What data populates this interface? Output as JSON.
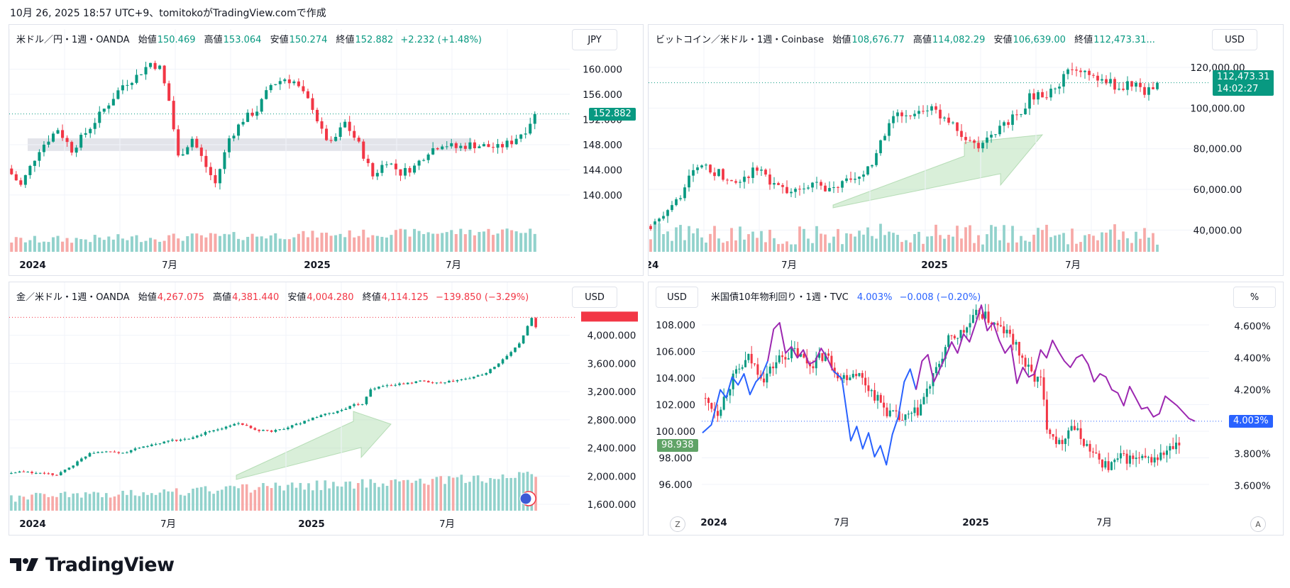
{
  "header": {
    "text": "10月 26, 2025 18:57 UTC+9、tomitokoがTradingView.comで作成"
  },
  "footer": {
    "brand": "TradingView"
  },
  "colors": {
    "up": "#089981",
    "down": "#f23645",
    "volUp": "#92d2cc",
    "volDown": "#f7a9a7",
    "blue": "#2962ff",
    "purple": "#9c27b0",
    "grid": "#f0f3fa"
  },
  "panels": {
    "p1": {
      "symbol": "米ドル／円・1週・OANDA",
      "open_label": "始値",
      "open": "150.469",
      "high_label": "高値",
      "high": "153.064",
      "low_label": "安値",
      "low": "150.274",
      "close_label": "終値",
      "close": "152.882",
      "change": "+2.232 (+1.48%)",
      "unit": "JPY",
      "price_tag": "152.882"
    },
    "p2": {
      "symbol": "ビットコイン／米ドル・1週・Coinbase",
      "open_label": "始値",
      "open": "108,676.77",
      "high_label": "高値",
      "high": "114,082.29",
      "low_label": "安値",
      "low": "106,639.00",
      "close_label": "終値",
      "close": "112,473.31...",
      "unit": "USD",
      "price_tag": "112,473.31",
      "countdown": "14:02:27"
    },
    "p3": {
      "symbol": "金／米ドル・1週・OANDA",
      "open_label": "始値",
      "open": "4,267.075",
      "high_label": "高値",
      "high": "4,381.440",
      "low_label": "安値",
      "low": "4,004.280",
      "close_label": "終値",
      "close": "4,114.125",
      "change": "−139.850 (−3.29%)",
      "unit": "USD"
    },
    "p4": {
      "symbol": "米国債10年物利回り・1週・TVC",
      "value": "4.003%",
      "change": "−0.008 (−0.20%)",
      "unit_left": "USD",
      "unit_right": "%",
      "tag_left": "98.938",
      "tag_right": "4.003%",
      "scale_left": "Z",
      "scale_right": "A"
    }
  },
  "chart_data": [
    {
      "type": "candlestick",
      "title": "米ドル／円・1週・OANDA",
      "y_ticks": [
        "140.000",
        "144.000",
        "148.000",
        "152.000",
        "156.000",
        "160.000"
      ],
      "x_ticks": [
        "2024",
        "7月",
        "2025",
        "7月"
      ],
      "ylim": [
        137.5,
        163
      ],
      "last": 152.882,
      "shaded_zone": [
        147.0,
        149.0
      ],
      "path": [
        [
          0,
          144.2
        ],
        [
          3,
          141.5
        ],
        [
          7,
          147.3
        ],
        [
          11,
          150.5
        ],
        [
          14,
          147.2
        ],
        [
          18,
          150.8
        ],
        [
          22,
          154.6
        ],
        [
          25,
          157.5
        ],
        [
          28,
          158.9
        ],
        [
          31,
          161.0
        ],
        [
          33,
          160.2
        ],
        [
          35,
          155.0
        ],
        [
          37,
          146.0
        ],
        [
          40,
          149.0
        ],
        [
          43,
          144.5
        ],
        [
          45,
          141.8
        ],
        [
          48,
          149.0
        ],
        [
          51,
          152.0
        ],
        [
          54,
          153.5
        ],
        [
          57,
          157.5
        ],
        [
          60,
          158.5
        ],
        [
          62,
          158.0
        ],
        [
          64,
          156.0
        ],
        [
          66,
          154.0
        ],
        [
          68,
          150.0
        ],
        [
          70,
          148.0
        ],
        [
          73,
          151.5
        ],
        [
          76,
          148.0
        ],
        [
          79,
          143.0
        ],
        [
          82,
          145.5
        ],
        [
          85,
          143.5
        ],
        [
          88,
          144.5
        ],
        [
          91,
          147.0
        ],
        [
          94,
          148.2
        ],
        [
          97,
          147.5
        ],
        [
          100,
          148.0
        ],
        [
          103,
          147.8
        ],
        [
          106,
          147.5
        ],
        [
          109,
          148.5
        ],
        [
          112,
          150.4
        ],
        [
          114,
          152.9
        ]
      ],
      "volume_pattern": "rising"
    },
    {
      "type": "candlestick",
      "title": "ビットコイン／米ドル・1週・Coinbase",
      "y_ticks": [
        "40,000.00",
        "60,000.00",
        "80,000.00",
        "100,000.00",
        "120,000.00"
      ],
      "x_ticks": [
        "24",
        "7月",
        "2025",
        "7月"
      ],
      "ylim": [
        30000,
        127000
      ],
      "last": 112473.31,
      "path": [
        [
          0,
          42000
        ],
        [
          3,
          44000
        ],
        [
          6,
          50000
        ],
        [
          9,
          62000
        ],
        [
          12,
          71000
        ],
        [
          15,
          70000
        ],
        [
          18,
          67000
        ],
        [
          21,
          62000
        ],
        [
          24,
          68000
        ],
        [
          27,
          70000
        ],
        [
          30,
          62000
        ],
        [
          33,
          58000
        ],
        [
          36,
          60000
        ],
        [
          39,
          64000
        ],
        [
          42,
          58000
        ],
        [
          45,
          62000
        ],
        [
          48,
          64000
        ],
        [
          51,
          67000
        ],
        [
          54,
          77000
        ],
        [
          57,
          92000
        ],
        [
          60,
          98000
        ],
        [
          63,
          96000
        ],
        [
          66,
          100000
        ],
        [
          69,
          96000
        ],
        [
          72,
          93000
        ],
        [
          75,
          84000
        ],
        [
          78,
          82000
        ],
        [
          81,
          85000
        ],
        [
          84,
          93000
        ],
        [
          87,
          96000
        ],
        [
          90,
          105000
        ],
        [
          93,
          107000
        ],
        [
          96,
          108000
        ],
        [
          99,
          118000
        ],
        [
          102,
          118000
        ],
        [
          105,
          115000
        ],
        [
          108,
          114000
        ],
        [
          111,
          110000
        ],
        [
          114,
          112000
        ],
        [
          117,
          108000
        ],
        [
          120,
          112473
        ]
      ]
    },
    {
      "type": "candlestick",
      "title": "金／米ドル・1週・OANDA",
      "y_ticks": [
        "1,600.000",
        "2,000.000",
        "2,400.000",
        "2,800.000",
        "3,200.000",
        "3,600.000",
        "4,000.000"
      ],
      "x_ticks": [
        "2024",
        "7月",
        "2025",
        "7月"
      ],
      "ylim": [
        1550,
        4450
      ],
      "last": 4114.125,
      "path": [
        [
          0,
          2040
        ],
        [
          4,
          2060
        ],
        [
          8,
          2040
        ],
        [
          12,
          2020
        ],
        [
          16,
          2160
        ],
        [
          20,
          2330
        ],
        [
          24,
          2360
        ],
        [
          28,
          2320
        ],
        [
          32,
          2410
        ],
        [
          36,
          2450
        ],
        [
          40,
          2510
        ],
        [
          44,
          2520
        ],
        [
          48,
          2620
        ],
        [
          52,
          2680
        ],
        [
          56,
          2760
        ],
        [
          60,
          2650
        ],
        [
          64,
          2640
        ],
        [
          68,
          2690
        ],
        [
          72,
          2780
        ],
        [
          76,
          2860
        ],
        [
          80,
          2920
        ],
        [
          84,
          3010
        ],
        [
          86,
          3030
        ],
        [
          88,
          3240
        ],
        [
          92,
          3290
        ],
        [
          96,
          3310
        ],
        [
          100,
          3350
        ],
        [
          104,
          3330
        ],
        [
          108,
          3350
        ],
        [
          112,
          3390
        ],
        [
          116,
          3470
        ],
        [
          120,
          3650
        ],
        [
          124,
          3880
        ],
        [
          127,
          4250
        ],
        [
          128,
          4114
        ]
      ]
    },
    {
      "type": "candlestick+line",
      "title": "米国債10年物利回り・1週・TVC",
      "left_ticks": [
        "96.000",
        "98.000",
        "100.000",
        "102.000",
        "104.000",
        "106.000",
        "108.000"
      ],
      "right_ticks": [
        "3.600%",
        "3.800%",
        "4.000%",
        "4.200%",
        "4.400%",
        "4.600%"
      ],
      "x_ticks": [
        "2024",
        "7月",
        "2025",
        "7月"
      ],
      "dxy_ylim": [
        95.2,
        109.6
      ],
      "yield_ylim": [
        3.54,
        4.74
      ],
      "dxy_path": [
        [
          0,
          102.5
        ],
        [
          5,
          101.5
        ],
        [
          10,
          104.0
        ],
        [
          15,
          105.5
        ],
        [
          20,
          104.0
        ],
        [
          25,
          105.5
        ],
        [
          30,
          106.0
        ],
        [
          35,
          105.0
        ],
        [
          40,
          105.8
        ],
        [
          45,
          104.0
        ],
        [
          50,
          104.5
        ],
        [
          55,
          103.0
        ],
        [
          60,
          101.5
        ],
        [
          65,
          100.8
        ],
        [
          70,
          101.5
        ],
        [
          75,
          104.0
        ],
        [
          80,
          106.8
        ],
        [
          85,
          107.5
        ],
        [
          90,
          109.0
        ],
        [
          95,
          108.0
        ],
        [
          100,
          107.2
        ],
        [
          105,
          105.0
        ],
        [
          108,
          104.0
        ],
        [
          110,
          103.8
        ],
        [
          112,
          100.5
        ],
        [
          116,
          99.0
        ],
        [
          120,
          100.5
        ],
        [
          124,
          99.2
        ],
        [
          128,
          98.0
        ],
        [
          132,
          97.3
        ],
        [
          136,
          98.0
        ],
        [
          140,
          97.9
        ],
        [
          144,
          97.8
        ],
        [
          148,
          98.0
        ],
        [
          152,
          98.6
        ],
        [
          155,
          98.9
        ]
      ],
      "yield_series": [
        {
          "color": "blue",
          "x": [
            0,
            3,
            6,
            8,
            10,
            12,
            14,
            16,
            18,
            20,
            22
          ],
          "y": [
            3.93,
            3.98,
            4.2,
            4.15,
            4.28,
            4.23,
            4.3,
            4.17,
            4.25,
            4.29,
            4.38
          ]
        },
        {
          "color": "purple",
          "x": [
            22,
            24,
            26,
            28,
            30,
            32,
            34,
            36,
            38,
            40,
            42,
            44
          ],
          "y": [
            4.38,
            4.58,
            4.62,
            4.43,
            4.47,
            4.4,
            4.45,
            4.36,
            4.38,
            4.46,
            4.4,
            4.32
          ]
        },
        {
          "color": "blue",
          "x": [
            44,
            47,
            50,
            52,
            54,
            56,
            58,
            60,
            62,
            64,
            66,
            68,
            70,
            72
          ],
          "y": [
            4.32,
            4.27,
            3.88,
            3.97,
            3.83,
            3.93,
            3.78,
            3.85,
            3.73,
            3.92,
            4.03,
            4.25,
            4.33,
            4.2
          ]
        },
        {
          "color": "purple",
          "x": [
            72,
            74,
            76,
            78,
            80,
            82,
            84,
            86,
            88,
            90,
            92,
            94,
            96,
            98,
            100,
            102,
            104,
            106,
            108,
            110,
            112,
            114,
            116,
            118,
            120,
            122,
            124,
            126,
            128,
            130,
            132,
            134,
            136,
            138,
            140,
            142,
            144,
            146,
            148,
            150,
            152,
            154,
            156,
            158,
            160,
            162,
            164,
            166
          ],
          "y": [
            4.2,
            4.38,
            4.42,
            4.25,
            4.33,
            4.41,
            4.5,
            4.43,
            4.55,
            4.5,
            4.61,
            4.73,
            4.57,
            4.62,
            4.51,
            4.43,
            4.48,
            4.24,
            4.34,
            4.28,
            4.3,
            4.45,
            4.4,
            4.51,
            4.44,
            4.38,
            4.34,
            4.4,
            4.42,
            4.36,
            4.25,
            4.3,
            4.28,
            4.2,
            4.18,
            4.1,
            4.22,
            4.15,
            4.08,
            4.09,
            4.03,
            4.05,
            4.16,
            4.13,
            4.1,
            4.06,
            4.02,
            4.003
          ]
        }
      ]
    }
  ]
}
